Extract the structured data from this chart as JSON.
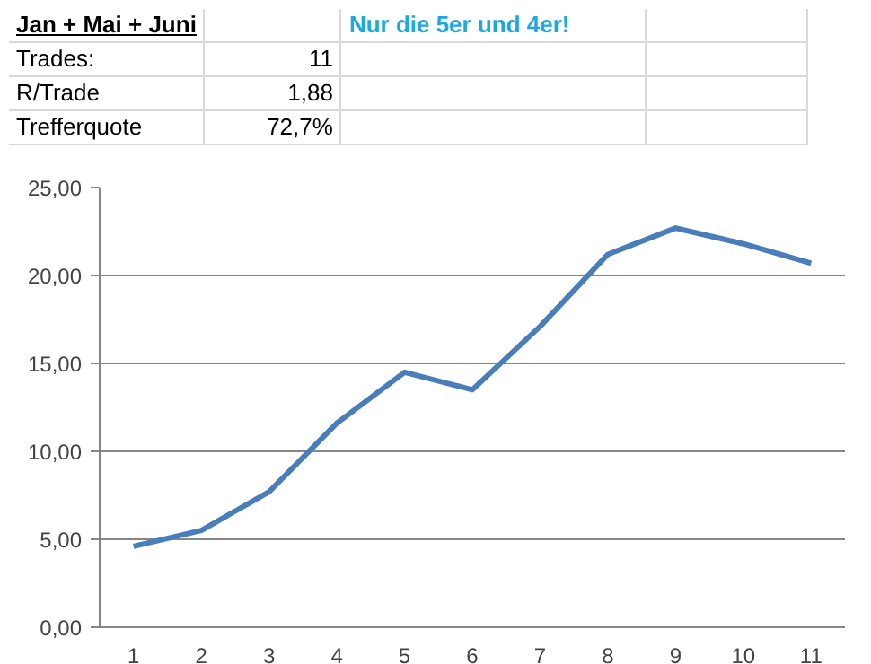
{
  "chart_data": {
    "type": "line",
    "title": "Jan + Mai + Juni",
    "annotations": [
      "Nur die 5er und 4er!",
      "Trades:",
      "11",
      "R/Trade",
      "1,88",
      "Trefferquote",
      "72,7%"
    ],
    "categories": [
      "1",
      "2",
      "3",
      "4",
      "5",
      "6",
      "7",
      "8",
      "9",
      "10",
      "11"
    ],
    "series": [
      {
        "color": "#4a7ebb",
        "values": [
          4.6,
          5.5,
          7.7,
          11.6,
          14.5,
          13.5,
          17.1,
          21.2,
          22.7,
          21.8,
          20.7
        ]
      }
    ],
    "ylim": [
      0,
      25
    ],
    "yticks": [
      {
        "value": 0,
        "label": "0,00"
      },
      {
        "value": 5,
        "label": "5,00"
      },
      {
        "value": 10,
        "label": "10,00"
      },
      {
        "value": 15,
        "label": "15,00"
      },
      {
        "value": 20,
        "label": "20,00"
      },
      {
        "value": 25,
        "label": "25,00"
      }
    ],
    "grid": "y",
    "marker": "none",
    "line_style": "solid"
  }
}
